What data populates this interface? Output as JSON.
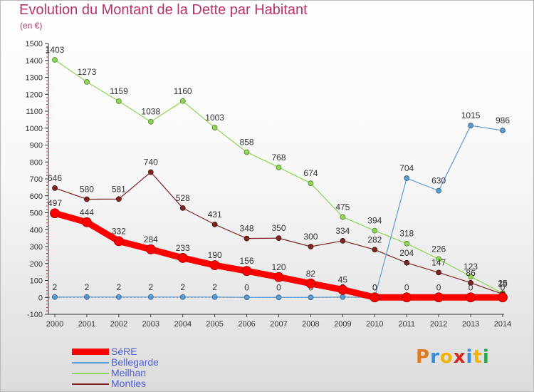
{
  "header": {
    "title": "Evolution du Montant de la Dette par Habitant",
    "subtitle": "(en €)"
  },
  "logo": {
    "text": "Proxiti",
    "letter_colors": [
      "#e27a1f",
      "#3b8ad8",
      "#f0b400",
      "#d9261c",
      "#3b8ad8",
      "#f0b400",
      "#2aa84a"
    ]
  },
  "chart_data": {
    "type": "line",
    "title": "Evolution du Montant de la Dette par Habitant",
    "subtitle": "(en €)",
    "xlabel": "",
    "ylabel": "",
    "x": [
      2000,
      2001,
      2002,
      2003,
      2004,
      2005,
      2006,
      2007,
      2008,
      2009,
      2010,
      2011,
      2012,
      2013,
      2014
    ],
    "ylim": [
      -100,
      1500
    ],
    "yticks": [
      -100,
      0,
      100,
      200,
      300,
      400,
      500,
      600,
      700,
      800,
      900,
      1000,
      1100,
      1200,
      1300,
      1400,
      1500
    ],
    "grid": false,
    "legend_position": "bottom-left",
    "series": [
      {
        "name": "Meilhan",
        "color": "#8ed653",
        "values": [
          1403,
          1273,
          1159,
          1038,
          1160,
          1003,
          858,
          768,
          674,
          475,
          394,
          318,
          226,
          123,
          25
        ],
        "labels": [
          "1403",
          "1273",
          "1159",
          "1038",
          "1160",
          "1003",
          "858",
          "768",
          "674",
          "475",
          "394",
          "318",
          "226",
          "123",
          "25"
        ]
      },
      {
        "name": "Monties",
        "color": "#7b2525",
        "values": [
          646,
          580,
          581,
          740,
          528,
          431,
          348,
          350,
          300,
          334,
          282,
          204,
          147,
          86,
          19
        ],
        "labels": [
          "646",
          "580",
          "581",
          "740",
          "528",
          "431",
          "348",
          "350",
          "300",
          "334",
          "282",
          "204",
          "147",
          "86",
          "19"
        ]
      },
      {
        "name": "Bellegarde",
        "color": "#5b9bd5",
        "values": [
          2,
          2,
          2,
          2,
          2,
          2,
          0,
          0,
          0,
          2,
          0,
          704,
          630,
          1015,
          986
        ],
        "labels": [
          "2",
          "2",
          "2",
          "2",
          "2",
          "2",
          "0",
          "0",
          "0",
          "2",
          "0",
          "704",
          "630",
          "1015",
          "986"
        ]
      },
      {
        "name": "SéRE",
        "color": "#ff0000",
        "values": [
          497,
          444,
          332,
          284,
          233,
          190,
          156,
          120,
          82,
          45,
          0,
          0,
          0,
          0,
          0
        ],
        "labels": [
          "497",
          "444",
          "332",
          "284",
          "233",
          "190",
          "156",
          "120",
          "82",
          "45",
          "0",
          "0",
          "0",
          "0",
          "0"
        ]
      }
    ],
    "legend_order": [
      "SéRE",
      "Bellegarde",
      "Meilhan",
      "Monties"
    ]
  }
}
